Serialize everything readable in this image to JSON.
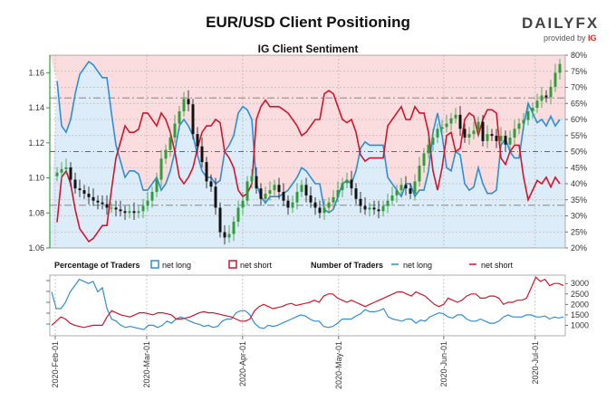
{
  "title": "EUR/USD Client Positioning",
  "brand": {
    "name": "DAILYFX",
    "name_part1": "DAILY",
    "name_part2": "FX",
    "provided_by": "provided by",
    "ig": "IG"
  },
  "colors": {
    "net_long": "#2e8fd6",
    "net_short": "#d1162b",
    "long_fill": "#dcecf9",
    "short_fill": "#fbdcdf",
    "candle_up": "#2f9e3a",
    "candle_down": "#111111"
  },
  "chart_data": [
    {
      "type": "line",
      "title": "IG Client Sentiment",
      "x_ticks": [
        "2020-Feb-01",
        "2020-Mar-01",
        "2020-Apr-01",
        "2020-May-01",
        "2020-Jun-01",
        "2020-Jul-01"
      ],
      "ylim_left": [
        1.06,
        1.17
      ],
      "y_ticks_left": [
        "1.06",
        "1.08",
        "1.10",
        "1.12",
        "1.14",
        "1.16"
      ],
      "ylim_right": [
        20,
        80
      ],
      "y_ticks_right": [
        "20%",
        "25%",
        "30%",
        "35%",
        "40%",
        "45%",
        "50%",
        "55%",
        "60%",
        "65%",
        "70%",
        "75%",
        "80%"
      ],
      "grid": true,
      "price_candles_close": [
        1.103,
        1.105,
        1.106,
        1.099,
        1.094,
        1.093,
        1.091,
        1.089,
        1.087,
        1.086,
        1.085,
        1.083,
        1.083,
        1.082,
        1.081,
        1.08,
        1.081,
        1.08,
        1.081,
        1.084,
        1.087,
        1.092,
        1.099,
        1.111,
        1.116,
        1.123,
        1.131,
        1.138,
        1.145,
        1.142,
        1.125,
        1.118,
        1.109,
        1.098,
        1.095,
        1.083,
        1.069,
        1.066,
        1.068,
        1.075,
        1.083,
        1.087,
        1.098,
        1.101,
        1.094,
        1.088,
        1.091,
        1.093,
        1.096,
        1.092,
        1.087,
        1.083,
        1.086,
        1.092,
        1.096,
        1.09,
        1.086,
        1.083,
        1.08,
        1.083,
        1.086,
        1.089,
        1.093,
        1.097,
        1.099,
        1.094,
        1.088,
        1.084,
        1.082,
        1.083,
        1.082,
        1.081,
        1.084,
        1.087,
        1.09,
        1.093,
        1.096,
        1.094,
        1.091,
        1.098,
        1.107,
        1.114,
        1.119,
        1.123,
        1.128,
        1.129,
        1.131,
        1.134,
        1.136,
        1.128,
        1.123,
        1.125,
        1.127,
        1.132,
        1.121,
        1.125,
        1.124,
        1.121,
        1.124,
        1.119,
        1.123,
        1.128,
        1.131,
        1.133,
        1.138,
        1.14,
        1.144,
        1.147,
        1.146,
        1.152,
        1.16,
        1.165
      ],
      "series": [
        {
          "name": "net long",
          "values": [
            72,
            58,
            56,
            60,
            68,
            74,
            76,
            78,
            77,
            75,
            73,
            73,
            62,
            52,
            47,
            42,
            44,
            44,
            43,
            38,
            38,
            40,
            42,
            38,
            40,
            44,
            50,
            58,
            60,
            58,
            55,
            49,
            44,
            42,
            42,
            40,
            41,
            50,
            52,
            55,
            62,
            64,
            63,
            60,
            40,
            36,
            34,
            36,
            36,
            36,
            37,
            38,
            40,
            42,
            45,
            44,
            42,
            40,
            40,
            32,
            31,
            32,
            36,
            40,
            41,
            40,
            44,
            51,
            53,
            52,
            52,
            52,
            52,
            42,
            40,
            38,
            36,
            40,
            40,
            36,
            38,
            38,
            44,
            56,
            62,
            55,
            45,
            44,
            50,
            49,
            40,
            38,
            39,
            45,
            40,
            37,
            37,
            38,
            52,
            54,
            50,
            48,
            48,
            58,
            65,
            62,
            59,
            60,
            58,
            61,
            58,
            60
          ]
        },
        {
          "name": "net short",
          "values": [
            28,
            42,
            44,
            40,
            32,
            26,
            24,
            22,
            23,
            25,
            27,
            27,
            38,
            48,
            53,
            58,
            56,
            56,
            57,
            62,
            62,
            60,
            58,
            62,
            60,
            56,
            50,
            42,
            40,
            42,
            45,
            51,
            56,
            58,
            58,
            60,
            59,
            50,
            48,
            45,
            38,
            36,
            37,
            40,
            60,
            64,
            66,
            64,
            64,
            64,
            63,
            62,
            60,
            58,
            55,
            56,
            58,
            60,
            60,
            68,
            69,
            68,
            64,
            60,
            59,
            60,
            56,
            49,
            47,
            48,
            48,
            48,
            48,
            58,
            60,
            62,
            64,
            60,
            60,
            64,
            62,
            62,
            56,
            44,
            38,
            45,
            55,
            56,
            50,
            51,
            60,
            62,
            61,
            55,
            60,
            63,
            63,
            62,
            48,
            46,
            50,
            52,
            52,
            42,
            35,
            38,
            41,
            40,
            42,
            39,
            42,
            40
          ]
        }
      ]
    },
    {
      "type": "line",
      "legend_groups": [
        {
          "title": "Percentage of Traders",
          "items": [
            "net long",
            "net short"
          ],
          "style": "box"
        },
        {
          "title": "Number of Traders",
          "items": [
            "net long",
            "net short"
          ],
          "style": "line"
        }
      ],
      "ylim_right": [
        500,
        3400
      ],
      "y_ticks_right": [
        "1000",
        "1500",
        "2000",
        "2500",
        "3000"
      ],
      "series": [
        {
          "name": "net long",
          "values": [
            2600,
            1800,
            1800,
            2100,
            2600,
            2900,
            3200,
            3100,
            3000,
            3100,
            2600,
            2800,
            1800,
            1300,
            1200,
            1000,
            900,
            950,
            900,
            850,
            800,
            1000,
            1000,
            900,
            1000,
            1200,
            1100,
            1300,
            1400,
            1300,
            1200,
            1100,
            1050,
            950,
            1000,
            900,
            950,
            1200,
            1300,
            1300,
            1600,
            1700,
            1700,
            1500,
            1100,
            900,
            850,
            1000,
            950,
            1000,
            1100,
            1200,
            1300,
            1400,
            1500,
            1450,
            1300,
            1200,
            1200,
            950,
            900,
            950,
            1100,
            1300,
            1300,
            1300,
            1450,
            1550,
            1750,
            1650,
            1650,
            1700,
            1800,
            1400,
            1300,
            1250,
            1200,
            1300,
            1300,
            1100,
            1250,
            1200,
            1400,
            1500,
            1600,
            1550,
            1400,
            1350,
            1500,
            1500,
            1300,
            1200,
            1200,
            1300,
            1200,
            1100,
            1100,
            1200,
            1400,
            1500,
            1400,
            1400,
            1400,
            1500,
            1500,
            1400,
            1400,
            1450,
            1300,
            1400,
            1350,
            1400
          ]
        },
        {
          "name": "net short",
          "values": [
            1000,
            1200,
            1400,
            1300,
            1100,
            1000,
            950,
            900,
            950,
            1000,
            1000,
            1000,
            1400,
            1700,
            1600,
            1500,
            1450,
            1400,
            1500,
            1600,
            1600,
            1550,
            1500,
            1600,
            1600,
            1550,
            1500,
            1300,
            1300,
            1350,
            1400,
            1500,
            1600,
            1650,
            1600,
            1600,
            1550,
            1500,
            1450,
            1400,
            1300,
            1200,
            1200,
            1300,
            1700,
            1900,
            2000,
            1900,
            1800,
            1850,
            1900,
            2000,
            2050,
            1950,
            2000,
            2050,
            2100,
            2200,
            2100,
            2400,
            2500,
            2500,
            2300,
            2200,
            2100,
            2200,
            2100,
            2000,
            1900,
            2000,
            2100,
            2200,
            2300,
            2400,
            2500,
            2600,
            2600,
            2500,
            2400,
            2600,
            2500,
            2400,
            2200,
            2000,
            1900,
            2000,
            2300,
            2200,
            2100,
            2200,
            2400,
            2500,
            2500,
            2300,
            2300,
            2400,
            2400,
            2300,
            2000,
            2100,
            2100,
            2200,
            2200,
            2300,
            2800,
            3300,
            3100,
            3200,
            2900,
            3000,
            3000,
            2900
          ]
        }
      ]
    }
  ]
}
